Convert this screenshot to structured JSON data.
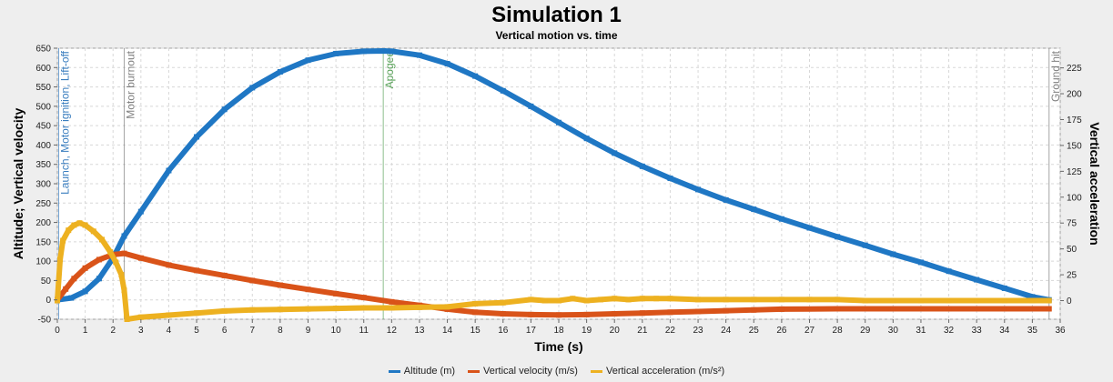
{
  "chart_data": {
    "type": "line",
    "title": "Simulation 1",
    "subtitle": "Vertical motion vs. time",
    "xlabel": "Time (s)",
    "ylabel_left": "Altitude; Vertical velocity",
    "ylabel_right": "Vertical acceleration",
    "xlim": [
      0,
      36
    ],
    "ylim_left": [
      -50,
      650
    ],
    "ylim_right": [
      -18,
      244
    ],
    "x_ticks": [
      0,
      1,
      2,
      3,
      4,
      5,
      6,
      7,
      8,
      9,
      10,
      11,
      12,
      13,
      14,
      15,
      16,
      17,
      18,
      19,
      20,
      21,
      22,
      23,
      24,
      25,
      26,
      27,
      28,
      29,
      30,
      31,
      32,
      33,
      34,
      35,
      36
    ],
    "y_left_ticks": [
      -50,
      0,
      50,
      100,
      150,
      200,
      250,
      300,
      350,
      400,
      450,
      500,
      550,
      600,
      650
    ],
    "y_right_ticks": [
      0,
      25,
      50,
      75,
      100,
      125,
      150,
      175,
      200,
      225
    ],
    "grid": true,
    "legend_position": "bottom",
    "events": [
      {
        "label": "Launch, Motor ignition, Lift-off",
        "x": 0.05,
        "color": "#3a7ebf"
      },
      {
        "label": "Motor burnout",
        "x": 2.4,
        "color": "#7f7f7f"
      },
      {
        "label": "Apogee",
        "x": 11.7,
        "color": "#5aa35a"
      },
      {
        "label": "Ground hit",
        "x": 35.6,
        "color": "#7f7f7f"
      }
    ],
    "series": [
      {
        "name": "Altitude (m)",
        "axis": "left",
        "color": "#1f77c4",
        "x": [
          0,
          0.5,
          1,
          1.5,
          2,
          2.4,
          3,
          4,
          5,
          6,
          7,
          8,
          9,
          10,
          11,
          11.7,
          12,
          13,
          14,
          15,
          16,
          17,
          18,
          19,
          20,
          21,
          22,
          23,
          24,
          25,
          26,
          27,
          28,
          29,
          30,
          31,
          32,
          33,
          34,
          35,
          35.6
        ],
        "y": [
          0,
          5,
          22,
          55,
          108,
          165,
          228,
          334,
          421,
          492,
          548,
          589,
          619,
          636,
          642,
          643,
          642,
          632,
          610,
          578,
          540,
          500,
          458,
          417,
          379,
          345,
          314,
          285,
          258,
          234,
          209,
          186,
          163,
          141,
          118,
          97,
          74,
          52,
          30,
          8,
          0
        ]
      },
      {
        "name": "Vertical velocity (m/s)",
        "axis": "left",
        "color": "#d95319",
        "x": [
          0,
          0.3,
          0.6,
          1,
          1.5,
          2,
          2.4,
          3,
          4,
          5,
          6,
          7,
          8,
          9,
          10,
          11,
          12,
          13,
          14,
          15,
          16,
          17,
          18,
          19,
          20,
          21,
          22,
          23,
          24,
          25,
          26,
          28,
          30,
          32,
          34,
          35.6
        ],
        "y": [
          0,
          28,
          55,
          82,
          104,
          117,
          120,
          108,
          90,
          76,
          63,
          50,
          38,
          27,
          16,
          6,
          -5,
          -14,
          -24,
          -32,
          -36,
          -38,
          -39,
          -38,
          -36,
          -34,
          -32,
          -30,
          -28,
          -26,
          -24,
          -23,
          -23,
          -23,
          -23,
          -23
        ]
      },
      {
        "name": "Vertical acceleration (m/s²)",
        "axis": "right",
        "color": "#edb120",
        "x": [
          0,
          0.1,
          0.2,
          0.4,
          0.6,
          0.8,
          1,
          1.3,
          1.6,
          1.9,
          2.1,
          2.3,
          2.4,
          2.5,
          3,
          4,
          5,
          6,
          7,
          8,
          9,
          10,
          11,
          12,
          13,
          14,
          15,
          16,
          17,
          17.5,
          18,
          18.5,
          19,
          19.5,
          20,
          20.5,
          21,
          21.5,
          22,
          23,
          24,
          25,
          26,
          27,
          28,
          29,
          30,
          31,
          32,
          33,
          34,
          35,
          35.6
        ],
        "y": [
          0,
          40,
          58,
          68,
          73,
          75,
          73,
          67,
          59,
          47,
          37,
          25,
          10,
          -18,
          -16,
          -14,
          -12,
          -10,
          -9,
          -8.5,
          -8,
          -7.5,
          -7,
          -7,
          -6.5,
          -6,
          -3,
          -2,
          1,
          0,
          0,
          2,
          0,
          1,
          2,
          1,
          2,
          2,
          2,
          1,
          1,
          1,
          1,
          1,
          1,
          0,
          0,
          0,
          0,
          0,
          0,
          0,
          0
        ]
      }
    ]
  }
}
